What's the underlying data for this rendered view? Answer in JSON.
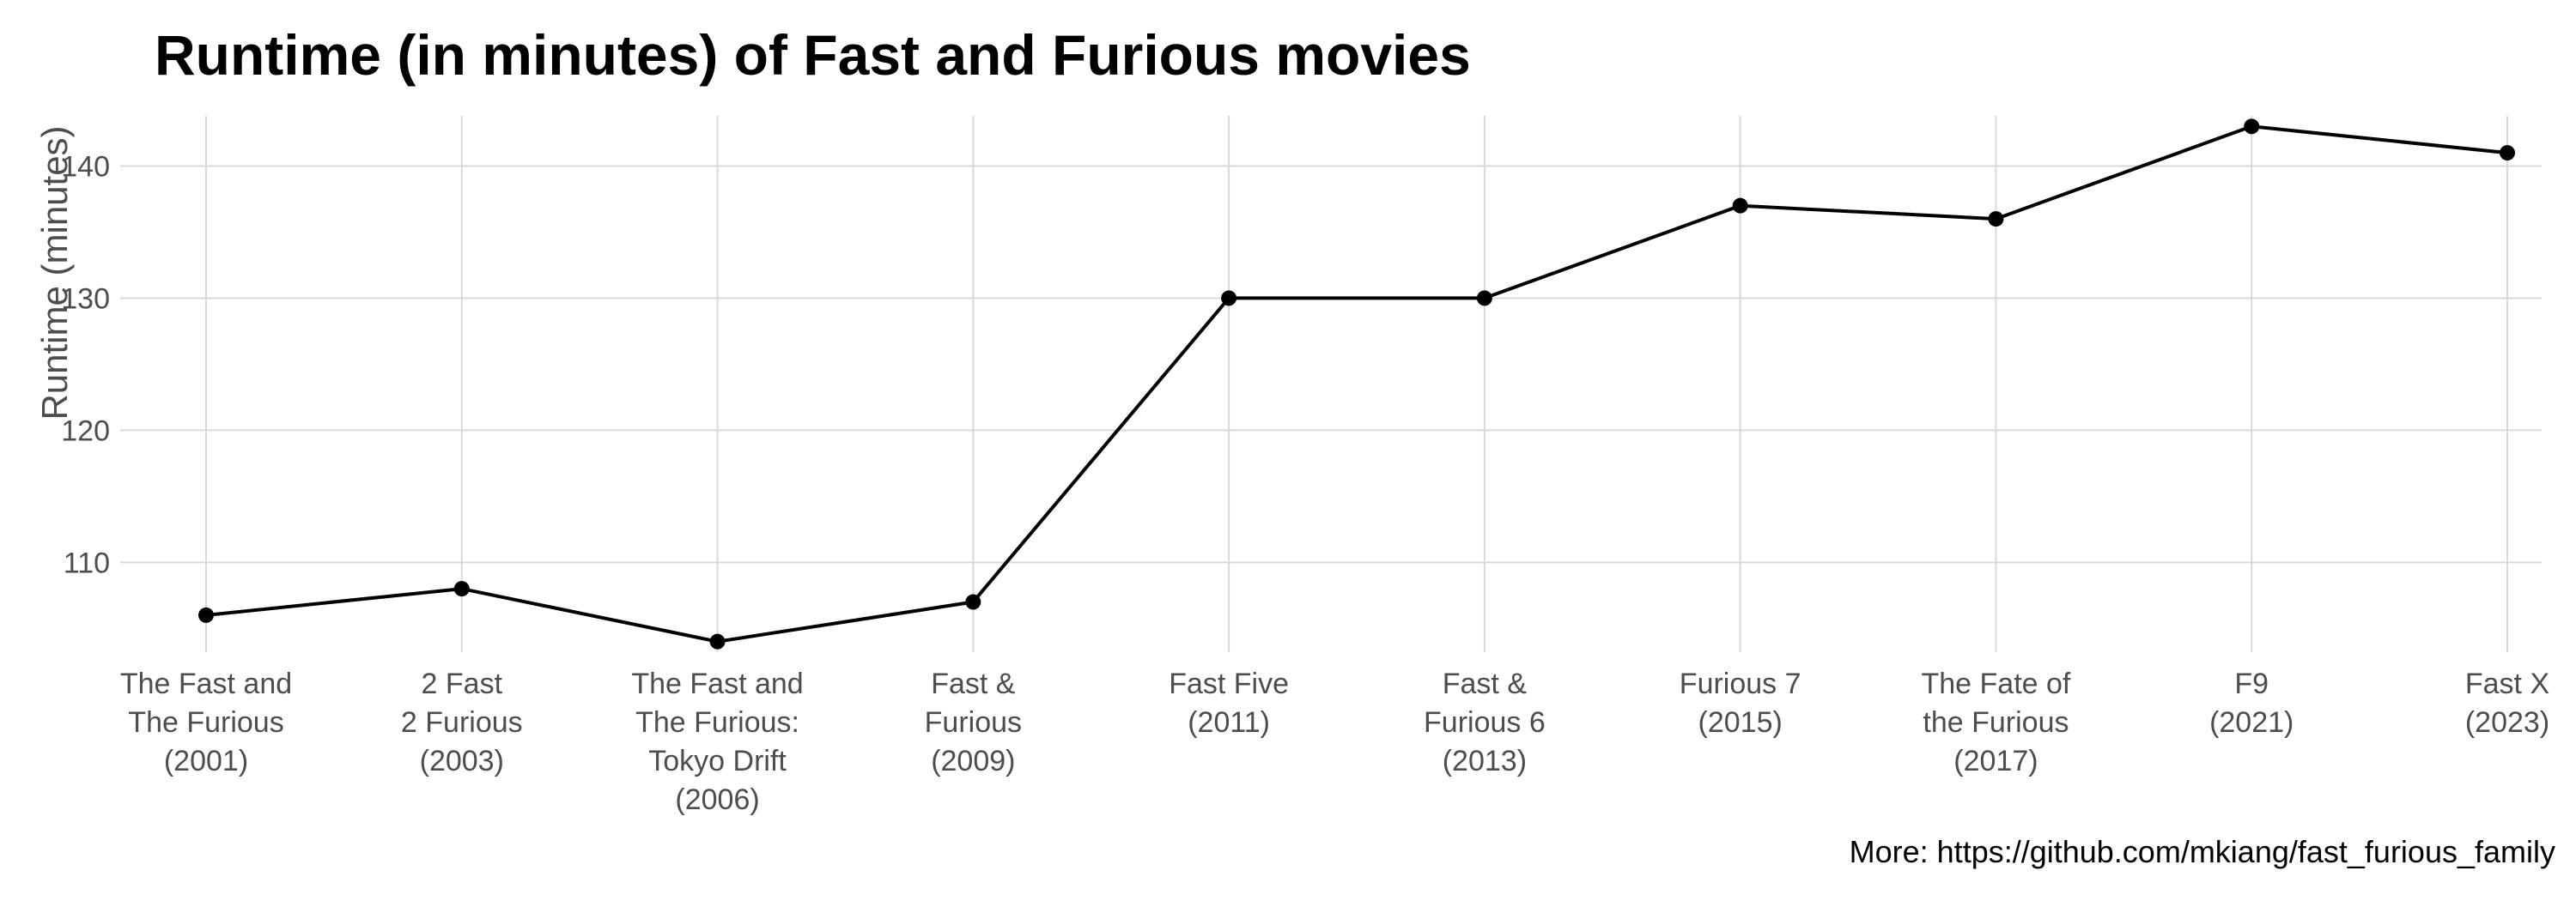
{
  "chart_data": {
    "type": "line",
    "title": "Runtime (in minutes) of Fast and Furious movies",
    "xlabel": "",
    "ylabel": "Runtime (minutes)",
    "caption": "More: https://github.com/mkiang/fast_furious_family",
    "categories": [
      [
        "The Fast and",
        "The Furious",
        "(2001)"
      ],
      [
        "2 Fast",
        "2 Furious",
        "(2003)"
      ],
      [
        "The Fast and",
        "The Furious:",
        "Tokyo Drift",
        "(2006)"
      ],
      [
        "Fast &",
        "Furious",
        "(2009)"
      ],
      [
        "Fast Five",
        "(2011)"
      ],
      [
        "Fast &",
        "Furious 6",
        "(2013)"
      ],
      [
        "Furious 7",
        "(2015)"
      ],
      [
        "The Fate of",
        "the Furious",
        "(2017)"
      ],
      [
        "F9",
        "(2021)"
      ],
      [
        "Fast X",
        "(2023)"
      ]
    ],
    "values": [
      106,
      108,
      104,
      107,
      130,
      130,
      137,
      136,
      143,
      141
    ],
    "yticks": [
      110,
      120,
      130,
      140
    ],
    "ylim": [
      103.2,
      143.8
    ],
    "grid": true,
    "legend": "none",
    "colors": {
      "line": "#000000",
      "grid": "#d9d9d9",
      "text": "#4d4d4d"
    }
  }
}
